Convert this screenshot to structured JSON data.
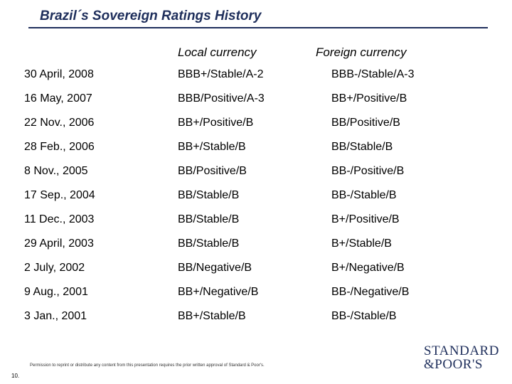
{
  "title": "Brazil´s Sovereign Ratings History",
  "columns": {
    "local": "Local currency",
    "foreign": "Foreign currency"
  },
  "rows": [
    {
      "date": "30 April, 2008",
      "local": "BBB+/Stable/A-2",
      "foreign": "BBB-/Stable/A-3"
    },
    {
      "date": "16 May, 2007",
      "local": "BBB/Positive/A-3",
      "foreign": "BB+/Positive/B"
    },
    {
      "date": "22 Nov., 2006",
      "local": "BB+/Positive/B",
      "foreign": "BB/Positive/B"
    },
    {
      "date": "28 Feb., 2006",
      "local": "BB+/Stable/B",
      "foreign": "BB/Stable/B"
    },
    {
      "date": "8 Nov., 2005",
      "local": "BB/Positive/B",
      "foreign": "BB-/Positive/B"
    },
    {
      "date": "17 Sep., 2004",
      "local": "BB/Stable/B",
      "foreign": "BB-/Stable/B"
    },
    {
      "date": "11 Dec., 2003",
      "local": "BB/Stable/B",
      "foreign": "B+/Positive/B"
    },
    {
      "date": "29 April, 2003",
      "local": "BB/Stable/B",
      "foreign": "B+/Stable/B"
    },
    {
      "date": "2 July, 2002",
      "local": "BB/Negative/B",
      "foreign": "B+/Negative/B"
    },
    {
      "date": "9 Aug., 2001",
      "local": "BB+/Negative/B",
      "foreign": "BB-/Negative/B"
    },
    {
      "date": "3 Jan., 2001",
      "local": "BB+/Stable/B",
      "foreign": "BB-/Stable/B"
    }
  ],
  "footer": "Permission to reprint or distribute any content from this presentation requires the prior written approval of Standard & Poor's.",
  "page_number": "10.",
  "logo": {
    "line1": "STANDARD",
    "line2": "&POOR'S"
  }
}
